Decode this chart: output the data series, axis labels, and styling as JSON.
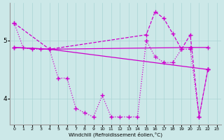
{
  "xlabel": "Windchill (Refroidissement éolien,°C)",
  "bg_color": "#cce8e8",
  "grid_color": "#aad4d4",
  "line_color": "#cc00cc",
  "xlim": [
    -0.5,
    23.5
  ],
  "ylim": [
    3.55,
    5.65
  ],
  "yticks": [
    4,
    5
  ],
  "xticks": [
    0,
    1,
    2,
    3,
    4,
    5,
    6,
    7,
    8,
    9,
    10,
    11,
    12,
    13,
    14,
    15,
    16,
    17,
    18,
    19,
    20,
    21,
    22,
    23
  ],
  "line1_x": [
    0,
    1,
    2,
    3,
    4,
    5,
    6,
    7,
    8,
    9,
    10,
    11,
    12,
    13,
    14,
    15,
    16,
    17,
    18,
    19,
    20,
    21,
    22
  ],
  "line1_y": [
    5.3,
    4.88,
    4.85,
    4.85,
    4.85,
    4.35,
    4.35,
    3.83,
    3.75,
    3.68,
    4.05,
    3.68,
    3.68,
    3.68,
    3.68,
    5.0,
    4.72,
    4.62,
    4.62,
    4.85,
    4.85,
    3.68,
    4.5
  ],
  "line2_x": [
    0,
    4,
    20,
    22
  ],
  "line2_y": [
    4.88,
    4.85,
    4.88,
    4.88
  ],
  "line3_x": [
    0,
    4,
    22
  ],
  "line3_y": [
    4.88,
    4.85,
    4.5
  ],
  "line4_x": [
    0,
    4,
    15,
    16,
    17,
    18,
    19,
    20,
    21,
    22
  ],
  "line4_y": [
    5.3,
    4.85,
    5.1,
    5.5,
    5.38,
    5.12,
    4.85,
    5.1,
    3.68,
    4.5
  ]
}
